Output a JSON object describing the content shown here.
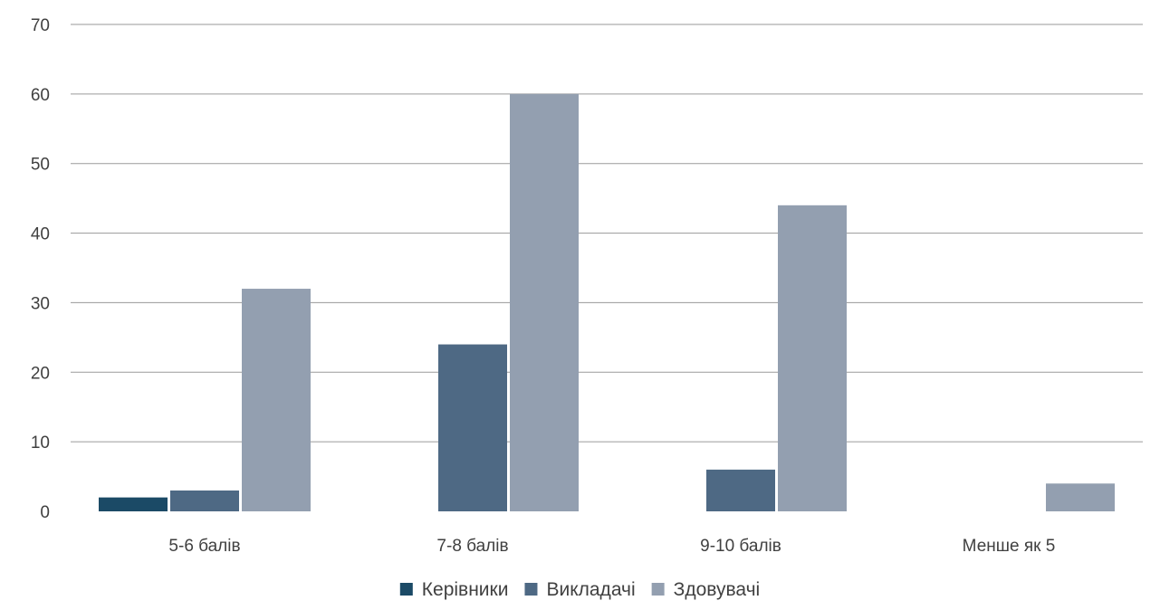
{
  "chart_data": {
    "type": "bar",
    "title": "",
    "xlabel": "",
    "ylabel": "",
    "categories": [
      "5-6 балів",
      "7-8 балів",
      "9-10 балів",
      "Менше як 5"
    ],
    "series": [
      {
        "name": "Керівники",
        "values": [
          2,
          0,
          0,
          0
        ],
        "color": "#1b4a66"
      },
      {
        "name": "Викладачі",
        "values": [
          3,
          24,
          6,
          0
        ],
        "color": "#4e6984"
      },
      {
        "name": "Здовувачі",
        "values": [
          32,
          60,
          44,
          4
        ],
        "color": "#939fb0"
      }
    ],
    "ylim": [
      0,
      70
    ],
    "yticks": [
      0,
      10,
      20,
      30,
      40,
      50,
      60,
      70
    ],
    "grid": true,
    "legend": "bottom"
  }
}
